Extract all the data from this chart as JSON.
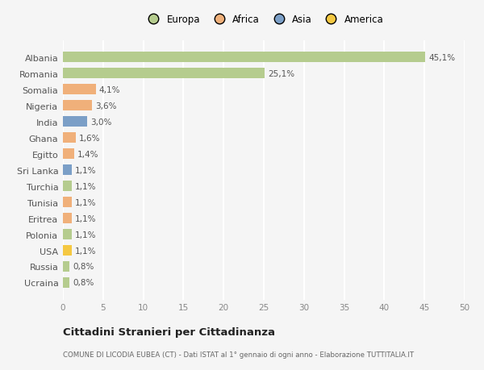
{
  "countries": [
    "Ucraina",
    "Russia",
    "USA",
    "Polonia",
    "Eritrea",
    "Tunisia",
    "Turchia",
    "Sri Lanka",
    "Egitto",
    "Ghana",
    "India",
    "Nigeria",
    "Somalia",
    "Romania",
    "Albania"
  ],
  "values": [
    0.8,
    0.8,
    1.1,
    1.1,
    1.1,
    1.1,
    1.1,
    1.1,
    1.4,
    1.6,
    3.0,
    3.6,
    4.1,
    25.1,
    45.1
  ],
  "labels": [
    "0,8%",
    "0,8%",
    "1,1%",
    "1,1%",
    "1,1%",
    "1,1%",
    "1,1%",
    "1,1%",
    "1,4%",
    "1,6%",
    "3,0%",
    "3,6%",
    "4,1%",
    "25,1%",
    "45,1%"
  ],
  "colors": [
    "#b5cc8e",
    "#b5cc8e",
    "#f5c842",
    "#b5cc8e",
    "#f0b07a",
    "#f0b07a",
    "#b5cc8e",
    "#7b9fc7",
    "#f0b07a",
    "#f0b07a",
    "#7b9fc7",
    "#f0b07a",
    "#f0b07a",
    "#b5cc8e",
    "#b5cc8e"
  ],
  "legend_colors": {
    "Europa": "#b5cc8e",
    "Africa": "#f0b07a",
    "Asia": "#7b9fc7",
    "America": "#f5c842"
  },
  "title": "Cittadini Stranieri per Cittadinanza",
  "subtitle": "COMUNE DI LICODIA EUBEA (CT) - Dati ISTAT al 1° gennaio di ogni anno - Elaborazione TUTTITALIA.IT",
  "xlim": [
    0,
    50
  ],
  "xticks": [
    0,
    5,
    10,
    15,
    20,
    25,
    30,
    35,
    40,
    45,
    50
  ],
  "background_color": "#f5f5f5",
  "grid_color": "#ffffff",
  "bar_height": 0.65
}
